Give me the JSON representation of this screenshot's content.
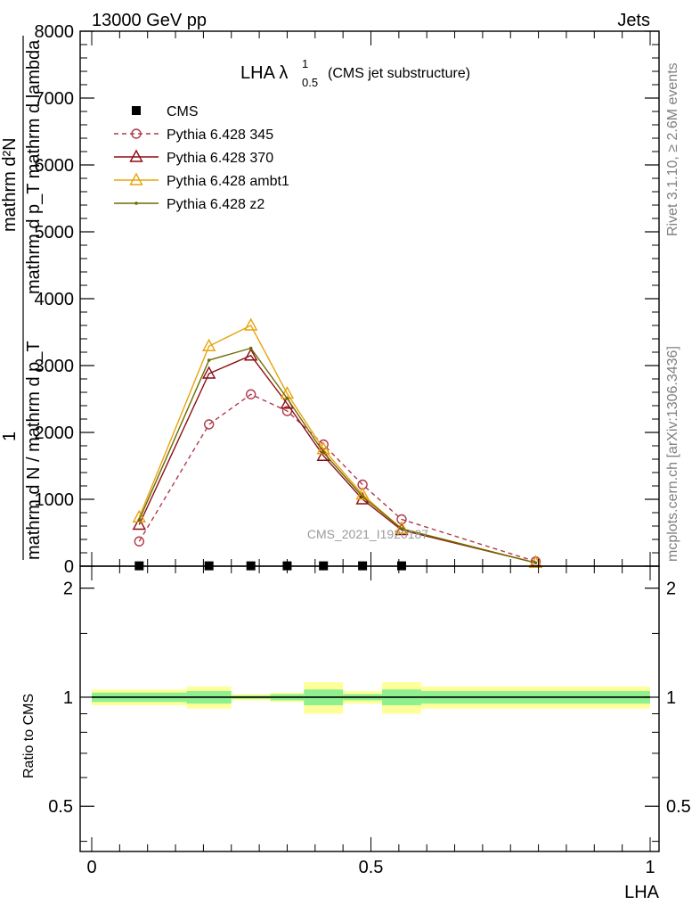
{
  "header": {
    "left": "13000 GeV pp",
    "right": "Jets"
  },
  "side_labels": {
    "rivet": "Rivet 3.1.10, ≥ 2.6M events",
    "mcplots": "mcplots.cern.ch [arXiv:1306.3436]"
  },
  "watermark": "CMS_2021_I1920187",
  "chart_data": [
    {
      "type": "line",
      "title_main": "LHA λ",
      "title_sup": "1",
      "title_sub": "0.5",
      "title_suffix": "(CMS jet substructure)",
      "ylabel_upper": "mathrm d²N",
      "ylabel_upper2": "mathrm d p_T mathrm d lambda",
      "ylabel_numer": "1",
      "ylabel_lower": "mathrm d N / mathrm d p_T",
      "xlim": [
        0,
        1
      ],
      "ylim": [
        0,
        8000
      ],
      "yticks": [
        {
          "v": 0,
          "label": "0"
        },
        {
          "v": 1000,
          "label": "1000"
        },
        {
          "v": 2000,
          "label": "2000"
        },
        {
          "v": 3000,
          "label": "3000"
        },
        {
          "v": 4000,
          "label": "4000"
        },
        {
          "v": 5000,
          "label": "5000"
        },
        {
          "v": 6000,
          "label": "6000"
        },
        {
          "v": 7000,
          "label": "7000"
        },
        {
          "v": 8000,
          "label": "8000"
        }
      ],
      "legend_position": "top-left",
      "series": [
        {
          "name": "CMS",
          "marker": "square",
          "color": "#000000",
          "x": [
            0.085,
            0.21,
            0.285,
            0.35,
            0.415,
            0.485,
            0.555
          ],
          "y": [
            5,
            5,
            5,
            5,
            5,
            5,
            5
          ]
        },
        {
          "name": "Pythia 6.428 345",
          "marker": "circle",
          "dashed": true,
          "color": "#b03a4a",
          "x": [
            0.085,
            0.21,
            0.285,
            0.35,
            0.415,
            0.485,
            0.555,
            0.795
          ],
          "y": [
            370,
            2120,
            2570,
            2320,
            1820,
            1220,
            700,
            70
          ]
        },
        {
          "name": "Pythia 6.428 370",
          "marker": "triangle",
          "color": "#8b0d14",
          "x": [
            0.085,
            0.21,
            0.285,
            0.35,
            0.415,
            0.485,
            0.555,
            0.795
          ],
          "y": [
            620,
            2880,
            3150,
            2430,
            1650,
            1000,
            540,
            50
          ]
        },
        {
          "name": "Pythia 6.428 ambt1",
          "marker": "triangle",
          "color": "#e8a30c",
          "x": [
            0.085,
            0.21,
            0.285,
            0.35,
            0.415,
            0.485,
            0.555,
            0.795
          ],
          "y": [
            730,
            3290,
            3600,
            2580,
            1750,
            1070,
            560,
            50
          ]
        },
        {
          "name": "Pythia 6.428 z2",
          "marker": "dot",
          "color": "#6b6b00",
          "x": [
            0.085,
            0.21,
            0.285,
            0.35,
            0.415,
            0.485,
            0.555,
            0.795
          ],
          "y": [
            690,
            3080,
            3260,
            2510,
            1700,
            1040,
            560,
            50
          ]
        }
      ]
    },
    {
      "type": "area",
      "ylabel": "Ratio to CMS",
      "xlabel": "LHA",
      "ylim": [
        0.375,
        2.3
      ],
      "log_y": true,
      "yticks": [
        {
          "v": 0.5,
          "label": "0.5"
        },
        {
          "v": 1,
          "label": "1"
        },
        {
          "v": 2,
          "label": "2"
        }
      ],
      "xticks": [
        {
          "v": 0,
          "label": "0"
        },
        {
          "v": 0.5,
          "label": "0.5"
        },
        {
          "v": 1,
          "label": "1"
        }
      ],
      "bins": [
        {
          "x0": 0.0,
          "x1": 0.17,
          "stat": [
            0.97,
            1.03
          ],
          "total": [
            0.95,
            1.05
          ]
        },
        {
          "x0": 0.17,
          "x1": 0.25,
          "stat": [
            0.96,
            1.04
          ],
          "total": [
            0.93,
            1.07
          ]
        },
        {
          "x0": 0.25,
          "x1": 0.32,
          "stat": [
            0.99,
            1.01
          ],
          "total": [
            0.98,
            1.02
          ]
        },
        {
          "x0": 0.32,
          "x1": 0.38,
          "stat": [
            0.98,
            1.02
          ],
          "total": [
            0.97,
            1.03
          ]
        },
        {
          "x0": 0.38,
          "x1": 0.45,
          "stat": [
            0.95,
            1.05
          ],
          "total": [
            0.9,
            1.1
          ]
        },
        {
          "x0": 0.45,
          "x1": 0.52,
          "stat": [
            0.98,
            1.02
          ],
          "total": [
            0.96,
            1.04
          ]
        },
        {
          "x0": 0.52,
          "x1": 0.59,
          "stat": [
            0.95,
            1.05
          ],
          "total": [
            0.9,
            1.1
          ]
        },
        {
          "x0": 0.59,
          "x1": 1.0,
          "stat": [
            0.96,
            1.04
          ],
          "total": [
            0.93,
            1.07
          ]
        }
      ],
      "stat_color": "#8ef08e",
      "total_color": "#ffff99"
    }
  ]
}
